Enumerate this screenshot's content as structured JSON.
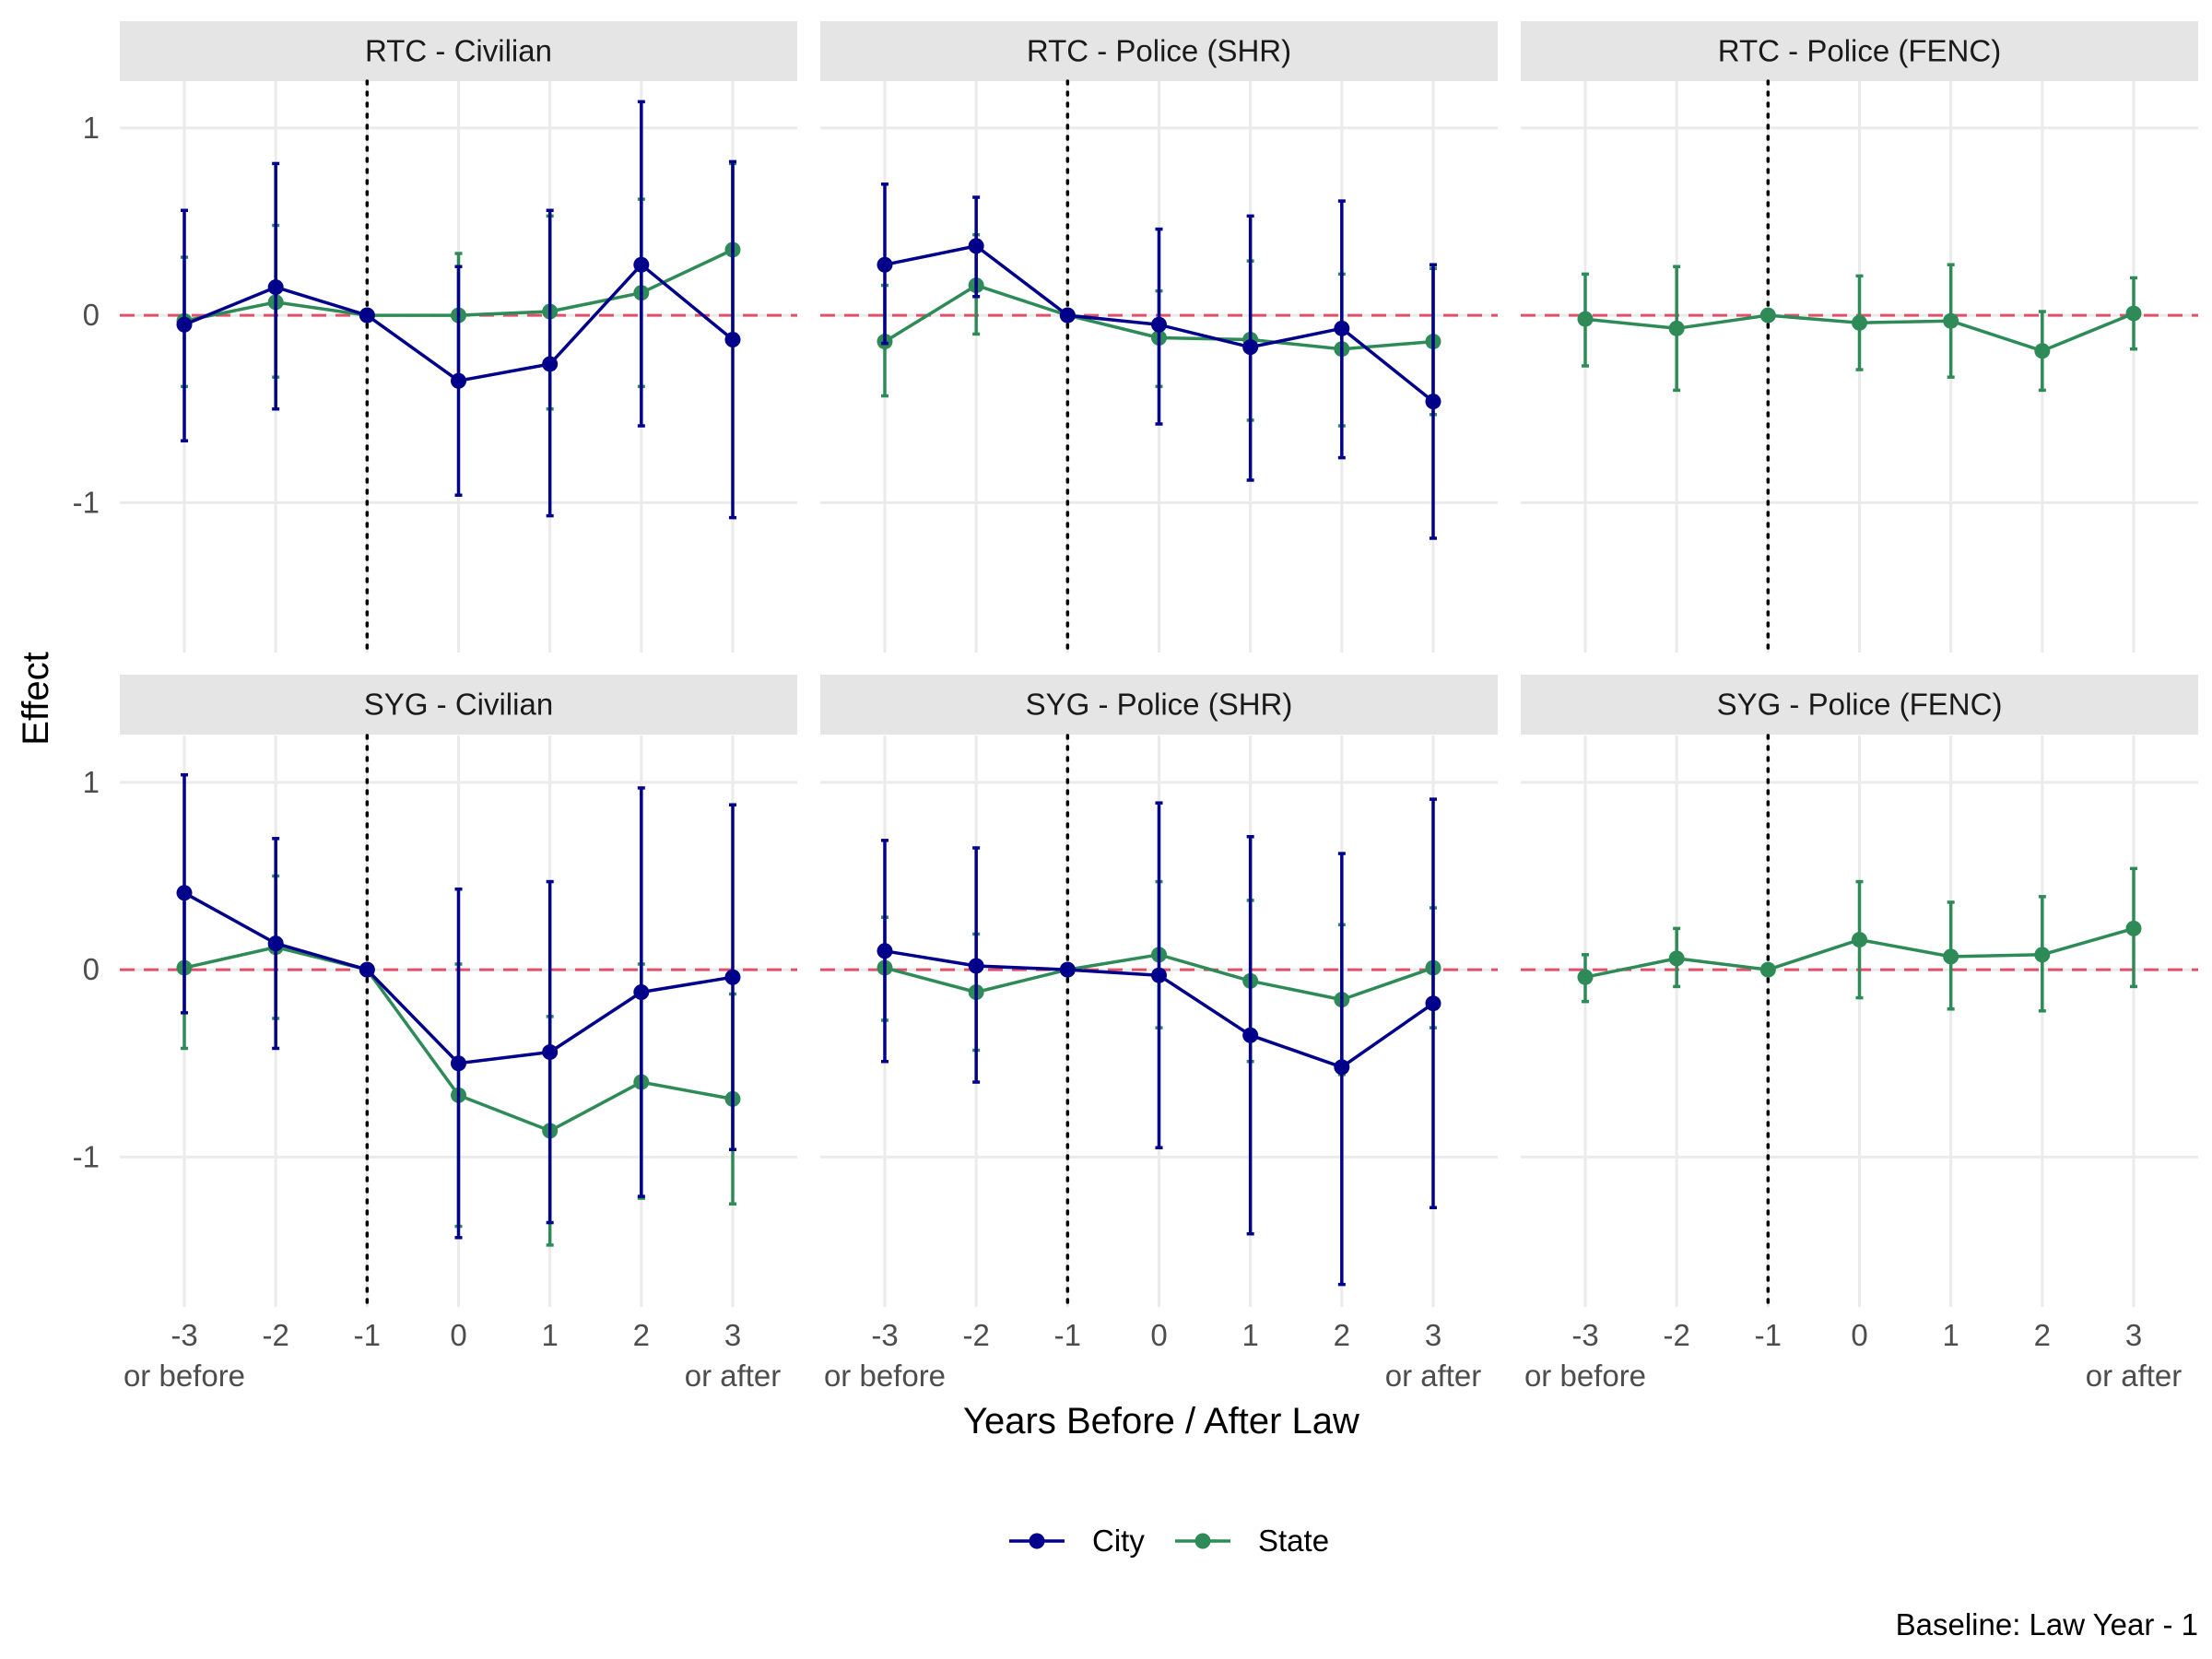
{
  "chart_data": {
    "type": "line",
    "xlabel": "Years Before / After Law",
    "ylabel": "Effect",
    "caption": "Baseline: Law Year - 1",
    "x": [
      -3,
      -2,
      -1,
      0,
      1,
      2,
      3
    ],
    "x_tick_labels": [
      "-3",
      "-2",
      "-1",
      "0",
      "1",
      "2",
      "3"
    ],
    "x_tick_sublabels": {
      "first": "or before",
      "last": "or after"
    },
    "ylim": [
      -1.8,
      1.25
    ],
    "y_ticks": [
      1,
      0,
      -1
    ],
    "y_tick_labels": [
      "1",
      "0",
      "-1"
    ],
    "reference_line_y": 0,
    "vertical_line_x": -1,
    "grid": true,
    "legend": {
      "position": "bottom",
      "entries": [
        "City",
        "State"
      ]
    },
    "colors": {
      "City": "#00008b",
      "State": "#2e8b57",
      "reference": "#e0506b",
      "strip": "#e5e5e5",
      "grid": "#ebebeb"
    },
    "panels": [
      {
        "title": "RTC - Civilian",
        "series": [
          {
            "name": "City",
            "values": [
              -0.05,
              0.15,
              0.0,
              -0.35,
              -0.26,
              0.27,
              -0.13
            ],
            "lower": [
              -0.67,
              -0.5,
              0.0,
              -0.96,
              -1.07,
              -0.59,
              -1.08
            ],
            "upper": [
              0.56,
              0.81,
              0.0,
              0.26,
              0.56,
              1.14,
              0.82
            ]
          },
          {
            "name": "State",
            "values": [
              -0.03,
              0.07,
              0.0,
              0.0,
              0.02,
              0.12,
              0.35
            ],
            "lower": [
              -0.38,
              -0.33,
              0.0,
              -0.32,
              -0.5,
              -0.38,
              -0.12
            ],
            "upper": [
              0.31,
              0.48,
              0.0,
              0.33,
              0.53,
              0.62,
              0.81
            ]
          }
        ]
      },
      {
        "title": "RTC - Police (SHR)",
        "series": [
          {
            "name": "City",
            "values": [
              0.27,
              0.37,
              0.0,
              -0.05,
              -0.17,
              -0.07,
              -0.46
            ],
            "lower": [
              -0.15,
              0.1,
              0.0,
              -0.58,
              -0.88,
              -0.76,
              -1.19
            ],
            "upper": [
              0.7,
              0.63,
              0.0,
              0.46,
              0.53,
              0.61,
              0.27
            ]
          },
          {
            "name": "State",
            "values": [
              -0.14,
              0.16,
              0.0,
              -0.12,
              -0.13,
              -0.18,
              -0.14
            ],
            "lower": [
              -0.43,
              -0.1,
              0.0,
              -0.38,
              -0.56,
              -0.59,
              -0.53
            ],
            "upper": [
              0.16,
              0.43,
              0.0,
              0.13,
              0.29,
              0.22,
              0.25
            ]
          }
        ]
      },
      {
        "title": "RTC - Police (FENC)",
        "series": [
          {
            "name": "State",
            "values": [
              -0.02,
              -0.07,
              0.0,
              -0.04,
              -0.03,
              -0.19,
              0.01
            ],
            "lower": [
              -0.27,
              -0.4,
              0.0,
              -0.29,
              -0.33,
              -0.4,
              -0.18
            ],
            "upper": [
              0.22,
              0.26,
              0.0,
              0.21,
              0.27,
              0.02,
              0.2
            ]
          }
        ]
      },
      {
        "title": "SYG - Civilian",
        "series": [
          {
            "name": "City",
            "values": [
              0.41,
              0.14,
              0.0,
              -0.5,
              -0.44,
              -0.12,
              -0.04
            ],
            "lower": [
              -0.23,
              -0.42,
              0.0,
              -1.43,
              -1.35,
              -1.21,
              -0.96
            ],
            "upper": [
              1.04,
              0.7,
              0.0,
              0.43,
              0.47,
              0.97,
              0.88
            ]
          },
          {
            "name": "State",
            "values": [
              0.01,
              0.12,
              0.0,
              -0.67,
              -0.86,
              -0.6,
              -0.69
            ],
            "lower": [
              -0.42,
              -0.26,
              0.0,
              -1.37,
              -1.47,
              -1.22,
              -1.25
            ],
            "upper": [
              0.43,
              0.5,
              0.0,
              0.03,
              -0.25,
              0.03,
              -0.13
            ]
          }
        ]
      },
      {
        "title": "SYG - Police (SHR)",
        "series": [
          {
            "name": "City",
            "values": [
              0.1,
              0.02,
              0.0,
              -0.03,
              -0.35,
              -0.52,
              -0.18
            ],
            "lower": [
              -0.49,
              -0.6,
              0.0,
              -0.95,
              -1.41,
              -1.68,
              -1.27
            ],
            "upper": [
              0.69,
              0.65,
              0.0,
              0.89,
              0.71,
              0.62,
              0.91
            ]
          },
          {
            "name": "State",
            "values": [
              0.01,
              -0.12,
              0.0,
              0.08,
              -0.06,
              -0.16,
              0.01
            ],
            "lower": [
              -0.27,
              -0.43,
              0.0,
              -0.31,
              -0.49,
              -0.56,
              -0.31
            ],
            "upper": [
              0.28,
              0.19,
              0.0,
              0.47,
              0.37,
              0.24,
              0.33
            ]
          }
        ]
      },
      {
        "title": "SYG - Police (FENC)",
        "series": [
          {
            "name": "State",
            "values": [
              -0.04,
              0.06,
              0.0,
              0.16,
              0.07,
              0.08,
              0.22
            ],
            "lower": [
              -0.17,
              -0.09,
              0.0,
              -0.15,
              -0.21,
              -0.22,
              -0.09
            ],
            "upper": [
              0.08,
              0.22,
              0.0,
              0.47,
              0.36,
              0.39,
              0.54
            ]
          }
        ]
      }
    ]
  }
}
